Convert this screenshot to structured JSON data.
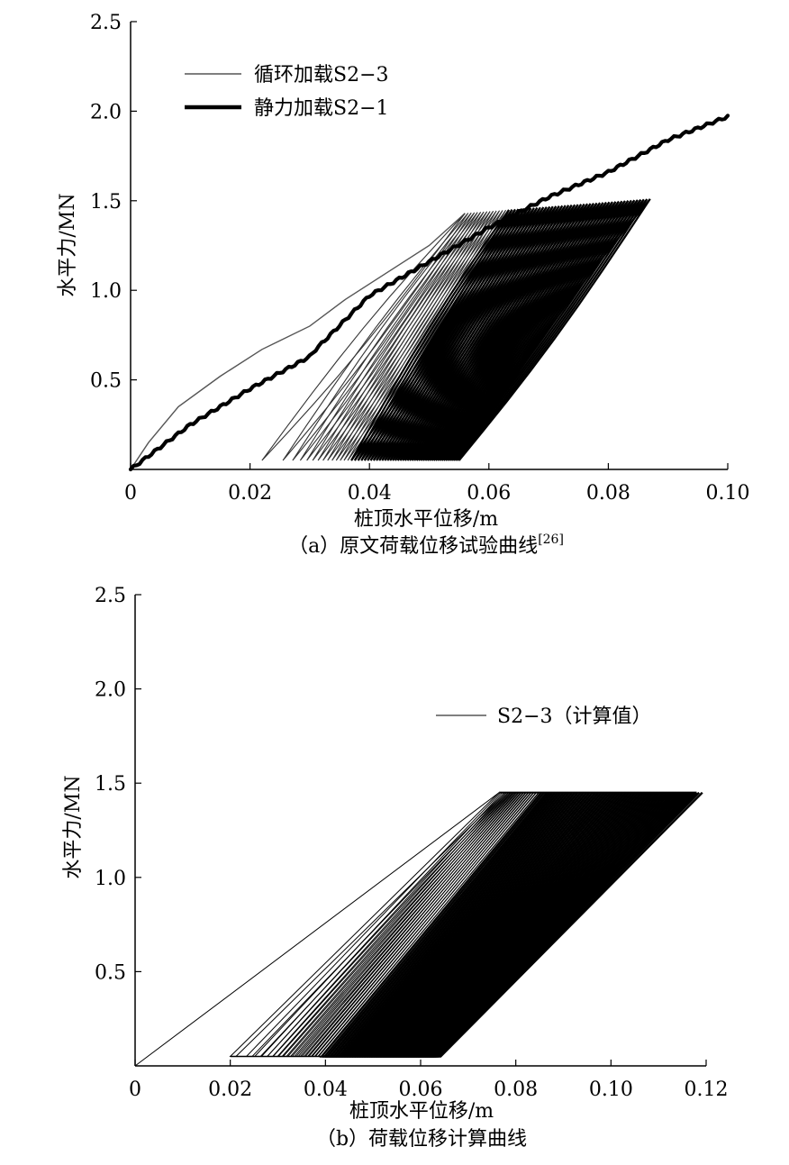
{
  "chart_data": [
    {
      "type": "line",
      "caption": "（a）原文荷载位移试验曲线",
      "caption_ref": "[26]",
      "xlabel": "桩顶水平位移/m",
      "ylabel": "水平力/MN",
      "xlim": [
        0,
        0.1
      ],
      "ylim": [
        0,
        2.5
      ],
      "xticks": [
        0,
        0.02,
        0.04,
        0.06,
        0.08,
        0.1
      ],
      "xtick_labels": [
        "0",
        "0.02",
        "0.04",
        "0.06",
        "0.08",
        "0.10"
      ],
      "yticks": [
        0.5,
        1.0,
        1.5,
        2.0,
        2.5
      ],
      "ytick_labels": [
        "0.5",
        "1.0",
        "1.5",
        "2.0",
        "2.5"
      ],
      "legend_position": "top-left",
      "grid": false,
      "series": [
        {
          "name": "循环加载S2−3",
          "style": "thin-gray",
          "color": "#555555",
          "first_loading_curve": {
            "x": [
              0,
              0.003,
              0.008,
              0.015,
              0.022,
              0.03,
              0.036,
              0.043,
              0.05,
              0.056
            ],
            "y": [
              0,
              0.15,
              0.35,
              0.52,
              0.67,
              0.8,
              0.95,
              1.1,
              1.25,
              1.43
            ]
          },
          "cycles": {
            "count": 60,
            "peak_x_range": [
              0.056,
              0.087
            ],
            "peak_y_range": [
              1.43,
              1.51
            ],
            "residual_x_range": [
              0.022,
              0.055
            ],
            "residual_y": 0.05
          }
        },
        {
          "name": "静力加载S2−1",
          "style": "thick-black",
          "color": "#000000",
          "x": [
            0,
            0.004,
            0.01,
            0.02,
            0.03,
            0.031,
            0.04,
            0.05,
            0.06,
            0.07,
            0.08,
            0.09,
            0.1
          ],
          "y": [
            0,
            0.1,
            0.25,
            0.45,
            0.63,
            0.67,
            0.97,
            1.16,
            1.35,
            1.52,
            1.66,
            1.84,
            1.97
          ]
        }
      ]
    },
    {
      "type": "line",
      "caption": "（b）荷载位移计算曲线",
      "xlabel": "桩顶水平位移/m",
      "ylabel": "水平力/MN",
      "xlim": [
        0,
        0.12
      ],
      "ylim": [
        0,
        2.5
      ],
      "xticks": [
        0,
        0.02,
        0.04,
        0.06,
        0.08,
        0.1,
        0.12
      ],
      "xtick_labels": [
        "0",
        "0.02",
        "0.04",
        "0.06",
        "0.08",
        "0.10",
        "0.12"
      ],
      "yticks": [
        0.5,
        1.0,
        1.5,
        2.0,
        2.5
      ],
      "ytick_labels": [
        "0.5",
        "1.0",
        "1.5",
        "2.0",
        "2.5"
      ],
      "legend_position": "upper-right",
      "grid": false,
      "series": [
        {
          "name": "S2−3（计算值）",
          "style": "thin-black",
          "color": "#000000",
          "first_loading_curve": {
            "x": [
              0,
              0.0765
            ],
            "y": [
              0,
              1.45
            ]
          },
          "cycles": {
            "count": 70,
            "peak_y": 1.45,
            "residual_y": 0.05,
            "peak_x_range": [
              0.0765,
              0.118
            ],
            "residual_x_range": [
              0.02,
              0.063
            ]
          }
        }
      ]
    }
  ]
}
